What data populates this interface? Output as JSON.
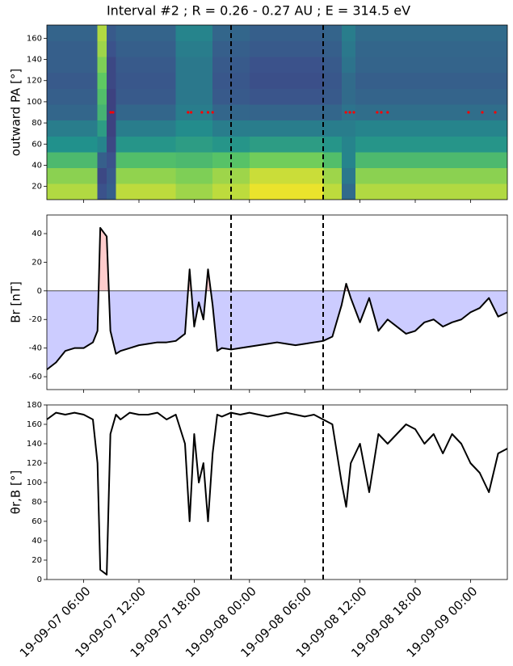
{
  "title": "Interval #2 ; R = 0.26 - 0.27 AU ; E = 314.5 eV",
  "chart_data": [
    {
      "type": "heatmap",
      "ylabel": "outward PA [°]",
      "colormap": "viridis",
      "xlim": [
        "2019-09-07T02:00",
        "2019-09-09T04:00"
      ],
      "ylim": [
        7.5,
        172.5
      ],
      "yticks": [
        20,
        40,
        60,
        80,
        100,
        120,
        140,
        160
      ],
      "time_bins": [
        "2019-09-07T02:00",
        "2019-09-07T07:30",
        "2019-09-07T08:30",
        "2019-09-07T09:30",
        "2019-09-07T16:00",
        "2019-09-07T20:00",
        "2019-09-08T00:00",
        "2019-09-08T08:00",
        "2019-09-08T10:00",
        "2019-09-08T11:30",
        "2019-09-09T04:00"
      ],
      "pa_bins": [
        7.5,
        22.5,
        37.5,
        52.5,
        67.5,
        82.5,
        97.5,
        112.5,
        127.5,
        142.5,
        157.5,
        172.5
      ],
      "z": [
        [
          0.88,
          0.82,
          0.68,
          0.5,
          0.42,
          0.33,
          0.3,
          0.28,
          0.3,
          0.3,
          0.32
        ],
        [
          0.25,
          0.22,
          0.3,
          0.45,
          0.55,
          0.65,
          0.7,
          0.75,
          0.8,
          0.85,
          0.88
        ],
        [
          0.3,
          0.28,
          0.25,
          0.22,
          0.2,
          0.2,
          0.2,
          0.22,
          0.22,
          0.25,
          0.28
        ],
        [
          0.9,
          0.83,
          0.7,
          0.52,
          0.42,
          0.33,
          0.28,
          0.27,
          0.28,
          0.3,
          0.32
        ],
        [
          0.85,
          0.8,
          0.68,
          0.55,
          0.48,
          0.42,
          0.4,
          0.4,
          0.4,
          0.42,
          0.45
        ],
        [
          0.9,
          0.85,
          0.72,
          0.52,
          0.42,
          0.33,
          0.28,
          0.27,
          0.28,
          0.3,
          0.33
        ],
        [
          0.97,
          0.92,
          0.78,
          0.55,
          0.42,
          0.32,
          0.26,
          0.24,
          0.25,
          0.28,
          0.3
        ],
        [
          0.9,
          0.85,
          0.7,
          0.52,
          0.42,
          0.33,
          0.28,
          0.27,
          0.28,
          0.3,
          0.32
        ],
        [
          0.35,
          0.4,
          0.45,
          0.45,
          0.42,
          0.38,
          0.35,
          0.35,
          0.38,
          0.4,
          0.42
        ],
        [
          0.88,
          0.82,
          0.68,
          0.52,
          0.45,
          0.36,
          0.32,
          0.3,
          0.32,
          0.33,
          0.35
        ]
      ],
      "points": {
        "color": "#ff0000",
        "x": [
          "2019-09-07T08:56",
          "2019-09-07T09:11",
          "2019-09-07T17:20",
          "2019-09-07T17:40",
          "2019-09-07T18:50",
          "2019-09-07T19:30",
          "2019-09-07T20:00",
          "2019-09-08T10:28",
          "2019-09-08T10:54",
          "2019-09-08T11:20",
          "2019-09-08T13:52",
          "2019-09-08T14:19",
          "2019-09-08T15:00",
          "2019-09-08T23:47",
          "2019-09-09T01:17",
          "2019-09-09T02:41"
        ],
        "values": [
          90,
          90,
          90,
          90,
          90,
          90,
          90,
          90,
          90,
          90,
          90,
          90,
          90,
          90,
          90,
          90
        ]
      },
      "vlines": [
        "2019-09-07T22:00",
        "2019-09-08T08:00"
      ]
    },
    {
      "type": "line",
      "ylabel": "Br [nT]",
      "color": "#000000",
      "fill_colors": {
        "positive": "#ffcccc",
        "negative": "#ccccff"
      },
      "xlim": [
        "2019-09-07T02:00",
        "2019-09-09T04:00"
      ],
      "ylim": [
        -69,
        53
      ],
      "yticks": [
        -60,
        -40,
        -20,
        0,
        20,
        40
      ],
      "hlines": [
        0
      ],
      "x": [
        "2019-09-07T02:00",
        "2019-09-07T03:00",
        "2019-09-07T04:00",
        "2019-09-07T05:00",
        "2019-09-07T06:00",
        "2019-09-07T07:00",
        "2019-09-07T07:30",
        "2019-09-07T07:48",
        "2019-09-07T08:30",
        "2019-09-07T08:54",
        "2019-09-07T09:30",
        "2019-09-07T10:00",
        "2019-09-07T11:00",
        "2019-09-07T12:00",
        "2019-09-07T13:00",
        "2019-09-07T14:00",
        "2019-09-07T15:00",
        "2019-09-07T16:00",
        "2019-09-07T17:00",
        "2019-09-07T17:30",
        "2019-09-07T18:00",
        "2019-09-07T18:30",
        "2019-09-07T19:00",
        "2019-09-07T19:30",
        "2019-09-07T20:00",
        "2019-09-07T20:30",
        "2019-09-07T21:00",
        "2019-09-07T22:00",
        "2019-09-07T23:00",
        "2019-09-08T00:00",
        "2019-09-08T01:00",
        "2019-09-08T02:00",
        "2019-09-08T03:00",
        "2019-09-08T04:00",
        "2019-09-08T05:00",
        "2019-09-08T06:00",
        "2019-09-08T07:00",
        "2019-09-08T08:00",
        "2019-09-08T09:00",
        "2019-09-08T10:00",
        "2019-09-08T10:30",
        "2019-09-08T11:00",
        "2019-09-08T12:00",
        "2019-09-08T13:00",
        "2019-09-08T14:00",
        "2019-09-08T15:00",
        "2019-09-08T16:00",
        "2019-09-08T17:00",
        "2019-09-08T18:00",
        "2019-09-08T19:00",
        "2019-09-08T20:00",
        "2019-09-08T21:00",
        "2019-09-08T22:00",
        "2019-09-08T23:00",
        "2019-09-09T00:00",
        "2019-09-09T01:00",
        "2019-09-09T02:00",
        "2019-09-09T03:00",
        "2019-09-09T04:00"
      ],
      "values": [
        -55,
        -50,
        -42,
        -40,
        -40,
        -36,
        -28,
        44,
        38,
        -28,
        -44,
        -42,
        -40,
        -38,
        -37,
        -36,
        -36,
        -35,
        -30,
        15,
        -25,
        -8,
        -20,
        15,
        -10,
        -42,
        -40,
        -41,
        -40,
        -39,
        -38,
        -37,
        -36,
        -37,
        -38,
        -37,
        -36,
        -35,
        -32,
        -10,
        5,
        -5,
        -22,
        -5,
        -28,
        -20,
        -25,
        -30,
        -28,
        -22,
        -20,
        -25,
        -22,
        -20,
        -15,
        -12,
        -5,
        -18,
        -15
      ],
      "vlines": [
        "2019-09-07T22:00",
        "2019-09-08T08:00"
      ]
    },
    {
      "type": "line",
      "ylabel": "θr,B [°]",
      "color": "#000000",
      "xlim": [
        "2019-09-07T02:00",
        "2019-09-09T04:00"
      ],
      "xticks": [
        {
          "value": "2019-09-07T06:00",
          "label": "19-09-07 06:00"
        },
        {
          "value": "2019-09-07T12:00",
          "label": "19-09-07 12:00"
        },
        {
          "value": "2019-09-07T18:00",
          "label": "19-09-07 18:00"
        },
        {
          "value": "2019-09-08T00:00",
          "label": "19-09-08 00:00"
        },
        {
          "value": "2019-09-08T06:00",
          "label": "19-09-08 06:00"
        },
        {
          "value": "2019-09-08T12:00",
          "label": "19-09-08 12:00"
        },
        {
          "value": "2019-09-08T18:00",
          "label": "19-09-08 18:00"
        },
        {
          "value": "2019-09-09T00:00",
          "label": "19-09-09 00:00"
        }
      ],
      "ylim": [
        0,
        180
      ],
      "yticks": [
        0,
        20,
        40,
        60,
        80,
        100,
        120,
        140,
        160,
        180
      ],
      "x": [
        "2019-09-07T02:00",
        "2019-09-07T03:00",
        "2019-09-07T04:00",
        "2019-09-07T05:00",
        "2019-09-07T06:00",
        "2019-09-07T07:00",
        "2019-09-07T07:30",
        "2019-09-07T07:48",
        "2019-09-07T08:30",
        "2019-09-07T08:54",
        "2019-09-07T09:30",
        "2019-09-07T10:00",
        "2019-09-07T11:00",
        "2019-09-07T12:00",
        "2019-09-07T13:00",
        "2019-09-07T14:00",
        "2019-09-07T15:00",
        "2019-09-07T16:00",
        "2019-09-07T17:00",
        "2019-09-07T17:30",
        "2019-09-07T18:00",
        "2019-09-07T18:30",
        "2019-09-07T19:00",
        "2019-09-07T19:30",
        "2019-09-07T20:00",
        "2019-09-07T20:30",
        "2019-09-07T21:00",
        "2019-09-07T22:00",
        "2019-09-07T23:00",
        "2019-09-08T00:00",
        "2019-09-08T01:00",
        "2019-09-08T02:00",
        "2019-09-08T03:00",
        "2019-09-08T04:00",
        "2019-09-08T05:00",
        "2019-09-08T06:00",
        "2019-09-08T07:00",
        "2019-09-08T08:00",
        "2019-09-08T09:00",
        "2019-09-08T10:00",
        "2019-09-08T10:30",
        "2019-09-08T11:00",
        "2019-09-08T12:00",
        "2019-09-08T13:00",
        "2019-09-08T14:00",
        "2019-09-08T15:00",
        "2019-09-08T16:00",
        "2019-09-08T17:00",
        "2019-09-08T18:00",
        "2019-09-08T19:00",
        "2019-09-08T20:00",
        "2019-09-08T21:00",
        "2019-09-08T22:00",
        "2019-09-08T23:00",
        "2019-09-09T00:00",
        "2019-09-09T01:00",
        "2019-09-09T02:00",
        "2019-09-09T03:00",
        "2019-09-09T04:00"
      ],
      "values": [
        165,
        172,
        170,
        172,
        170,
        165,
        120,
        10,
        5,
        150,
        170,
        165,
        172,
        170,
        170,
        172,
        165,
        170,
        140,
        60,
        150,
        100,
        120,
        60,
        130,
        170,
        168,
        172,
        170,
        172,
        170,
        168,
        170,
        172,
        170,
        168,
        170,
        165,
        160,
        100,
        75,
        120,
        140,
        90,
        150,
        140,
        150,
        160,
        155,
        140,
        150,
        130,
        150,
        140,
        120,
        110,
        90,
        130,
        135
      ],
      "vlines": [
        "2019-09-07T22:00",
        "2019-09-08T08:00"
      ]
    }
  ]
}
